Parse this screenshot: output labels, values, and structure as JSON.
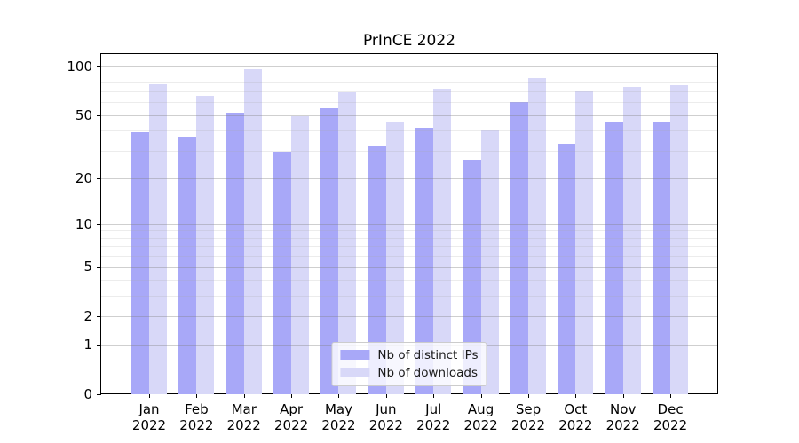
{
  "title": "PrInCE 2022",
  "colors": {
    "ips_bar": "#a8a8f8",
    "downloads_bar": "#d8d8f8",
    "axis": "#000000",
    "major_grid": "#cccccc",
    "minor_grid": "#e9e9e9"
  },
  "legend": {
    "entries": [
      "Nb of distinct IPs",
      "Nb of downloads"
    ]
  },
  "chart_data": {
    "type": "bar",
    "title": "PrInCE 2022",
    "categories": [
      "Jan",
      "Feb",
      "Mar",
      "Apr",
      "May",
      "Jun",
      "Jul",
      "Aug",
      "Sep",
      "Oct",
      "Nov",
      "Dec"
    ],
    "year_label": "2022",
    "series": [
      {
        "name": "Nb of distinct IPs",
        "color": "#a8a8f8",
        "values": [
          39,
          36,
          51,
          29,
          55,
          32,
          41,
          26,
          60,
          33,
          45,
          45
        ]
      },
      {
        "name": "Nb of downloads",
        "color": "#d8d8f8",
        "values": [
          78,
          66,
          96,
          49,
          69,
          45,
          72,
          40,
          85,
          70,
          75,
          77
        ]
      }
    ],
    "xlabel": "",
    "ylabel": "",
    "yscale": "log1p",
    "ylim": [
      0,
      119
    ],
    "yticks": [
      0,
      1,
      2,
      5,
      10,
      20,
      50,
      100
    ],
    "minor_yticks": [
      3,
      4,
      6,
      7,
      8,
      9,
      30,
      40,
      60,
      70,
      80,
      90
    ],
    "grid": true,
    "grid_on_top": true,
    "legend_position": "lower center"
  }
}
